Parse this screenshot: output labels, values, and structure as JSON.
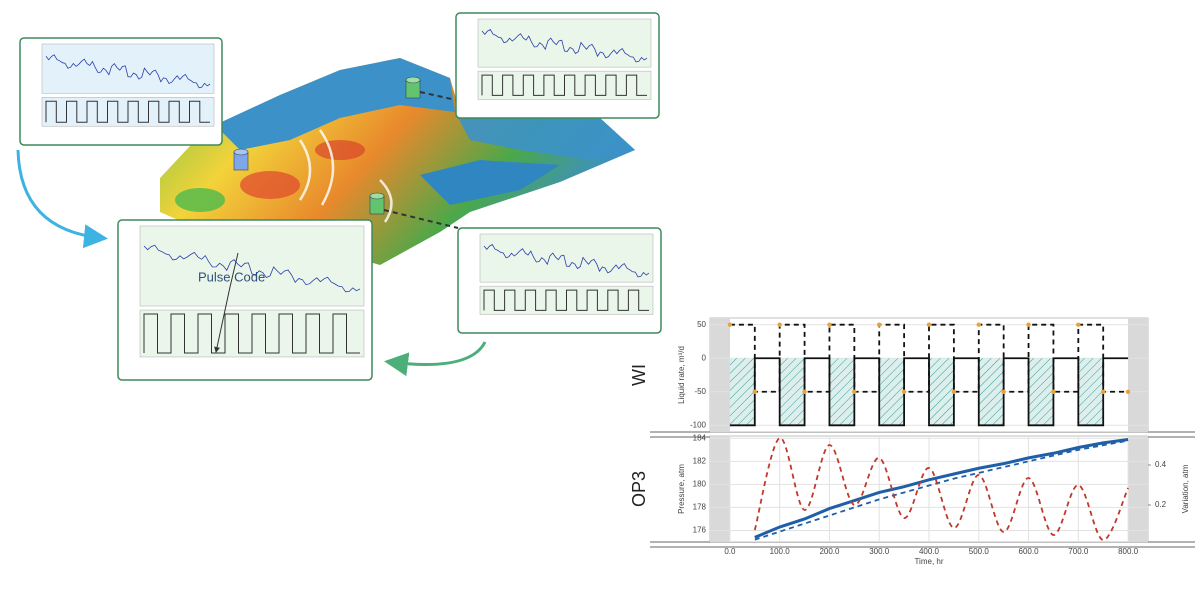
{
  "illustration": {
    "annotation": "Pulse Code"
  },
  "chart_data": [
    {
      "type": "line",
      "panel_label": "WI",
      "ylabel": "Liquid rate, m³/d",
      "x": [
        0,
        50,
        100,
        150,
        200,
        250,
        300,
        350,
        400,
        450,
        500,
        550,
        600,
        650,
        700,
        750,
        800
      ],
      "xlim": [
        -40,
        840
      ],
      "ylim": [
        -110,
        60
      ],
      "yticks": [
        -100,
        -50,
        0,
        50
      ],
      "grid": true,
      "series": [
        {
          "color": "#111111",
          "step": true,
          "hatch": true,
          "values": [
            -100,
            0,
            -100,
            0,
            -100,
            0,
            -100,
            0,
            -100,
            0,
            -100,
            0,
            -100,
            0,
            -100,
            0,
            0
          ]
        },
        {
          "color": "#111111",
          "step": true,
          "dash": true,
          "marker_color": "#e8a33c",
          "values": [
            50,
            -50,
            50,
            -50,
            50,
            -50,
            50,
            -50,
            50,
            -50,
            50,
            -50,
            50,
            -50,
            50,
            -50,
            -50
          ]
        }
      ]
    },
    {
      "type": "line",
      "panel_label": "OP3",
      "ylabel": "Pressure, atm",
      "y2label": "Variation, atm",
      "xlabel": "Time, hr",
      "x": [
        50,
        100,
        150,
        200,
        250,
        300,
        350,
        400,
        450,
        500,
        550,
        600,
        650,
        700,
        750,
        800
      ],
      "xlim": [
        -40,
        840
      ],
      "xticks": [
        {
          "value": 0,
          "label": "0.0"
        },
        {
          "value": 100,
          "label": "100.0"
        },
        {
          "value": 200,
          "label": "200.0"
        },
        {
          "value": 300,
          "label": "300.0"
        },
        {
          "value": 400,
          "label": "400.0"
        },
        {
          "value": 500,
          "label": "500.0"
        },
        {
          "value": 600,
          "label": "600.0"
        },
        {
          "value": 700,
          "label": "700.0"
        },
        {
          "value": 800,
          "label": "800.0"
        }
      ],
      "ylim": [
        175,
        184.2
      ],
      "yticks": [
        176,
        178,
        180,
        182,
        184
      ],
      "y2lim": [
        0.015,
        0.545
      ],
      "y2ticks": [
        0.2,
        0.4
      ],
      "grid": true,
      "series": [
        {
          "color": "#1f5fa8",
          "width": 3,
          "values": [
            175.4,
            176.3,
            177.0,
            177.9,
            178.6,
            179.3,
            179.8,
            180.4,
            180.9,
            181.4,
            181.8,
            182.3,
            182.7,
            183.2,
            183.6,
            183.9
          ]
        },
        {
          "color": "#1f5fa8",
          "dash": true,
          "values": [
            175.2,
            175.9,
            176.6,
            177.3,
            178.0,
            178.7,
            179.3,
            179.9,
            180.5,
            181.0,
            181.5,
            182.0,
            182.5,
            183.0,
            183.4,
            183.8
          ]
        },
        {
          "color": "#c0392b",
          "dash": true,
          "smooth": true,
          "axis": "y2",
          "values": [
            0.075,
            0.535,
            0.175,
            0.5,
            0.2,
            0.435,
            0.135,
            0.385,
            0.085,
            0.35,
            0.065,
            0.335,
            0.05,
            0.3,
            0.025,
            0.285
          ]
        }
      ]
    }
  ]
}
